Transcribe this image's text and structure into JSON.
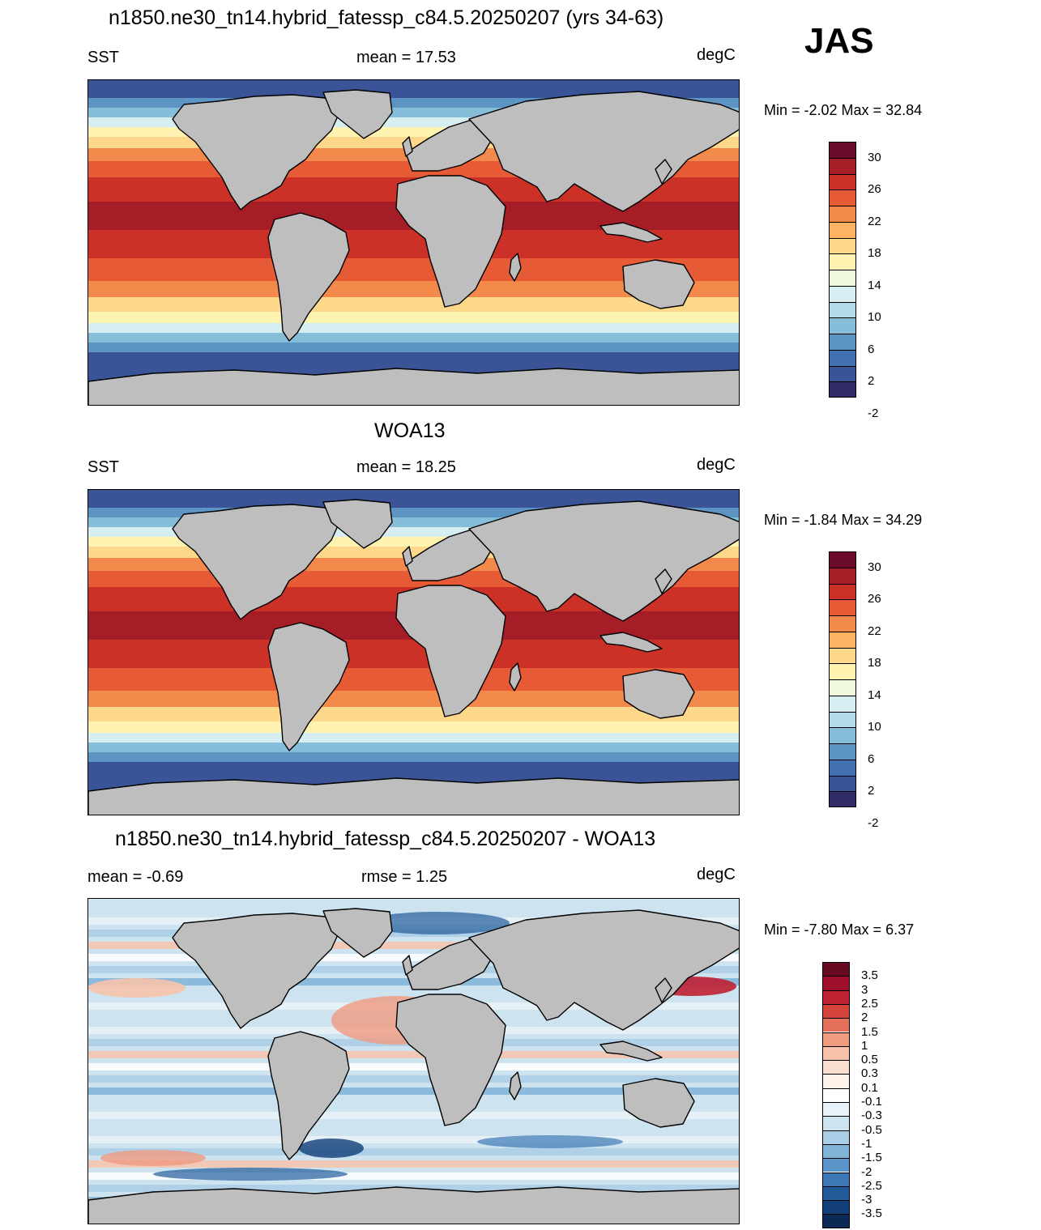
{
  "season": "JAS",
  "panels": [
    {
      "title": "n1850.ne30_tn14.hybrid_fatessp_c84.5.20250207 (yrs 34-63)",
      "left_label": "SST",
      "center_label": "mean =  17.53",
      "units": "degC",
      "minmax": "Min =  -2.02 Max =  32.84",
      "kind": "abs"
    },
    {
      "title": "WOA13",
      "left_label": "SST",
      "center_label": "mean =  18.25",
      "units": "degC",
      "minmax": "Min =  -1.84 Max =  34.29",
      "kind": "abs"
    },
    {
      "title": "n1850.ne30_tn14.hybrid_fatessp_c84.5.20250207 - WOA13",
      "left_label": "mean =  -0.69",
      "center_label": "rmse =   1.25",
      "units": "degC",
      "minmax": "Min =  -7.80 Max =   6.37",
      "kind": "diff"
    }
  ],
  "abs_colorbar": {
    "labels": [
      "30",
      "26",
      "22",
      "18",
      "14",
      "10",
      "6",
      "2",
      "-2"
    ],
    "colors": [
      "#6b0a2a",
      "#a51d26",
      "#cc3128",
      "#e65a35",
      "#f38a4c",
      "#fbb463",
      "#fdd88a",
      "#fef3b1",
      "#eef8dd",
      "#d6eef2",
      "#b2dbe9",
      "#86bdd8",
      "#5c95c4",
      "#4271b1",
      "#3b5497",
      "#302a67"
    ]
  },
  "diff_colorbar": {
    "labels": [
      "3.5",
      "3",
      "2.5",
      "2",
      "1.5",
      "1",
      "0.5",
      "0.3",
      "0.1",
      "-0.1",
      "-0.3",
      "-0.5",
      "-1",
      "-1.5",
      "-2",
      "-2.5",
      "-3",
      "-3.5"
    ],
    "colors": [
      "#670a22",
      "#9d0f2a",
      "#bf2032",
      "#d6453c",
      "#e4705c",
      "#f09a80",
      "#f7c2aa",
      "#fbdfd0",
      "#fdf1ea",
      "#ffffff",
      "#e9f2f8",
      "#cde3f0",
      "#aacde6",
      "#7fb3d8",
      "#5995c8",
      "#3b78b5",
      "#215b9a",
      "#123f78",
      "#0a2a55"
    ]
  },
  "map_colors": {
    "land": "#bebebe",
    "coast": "#000000",
    "polar": "#3b5497",
    "subpolar": "#86bdd8",
    "cool": "#fdd88a",
    "mid": "#e65a35",
    "warm": "#cc3128",
    "hot": "#a51d26"
  }
}
